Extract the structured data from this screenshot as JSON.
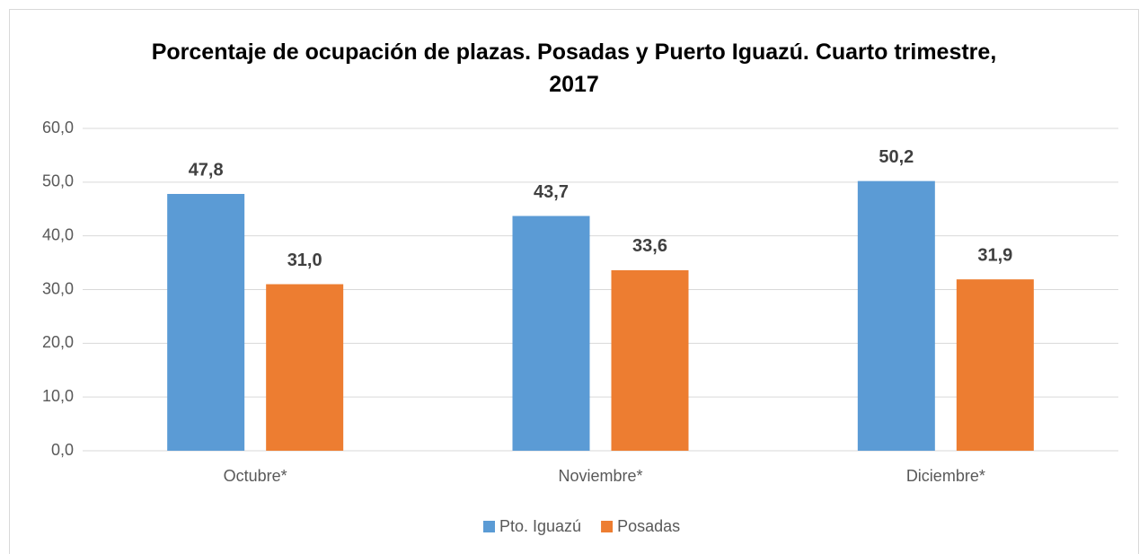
{
  "chart_data": {
    "type": "bar",
    "title": "Porcentaje de ocupación de plazas. Posadas y Puerto Iguazú. Cuarto trimestre, 2017",
    "categories": [
      "Octubre*",
      "Noviembre*",
      "Diciembre*"
    ],
    "series": [
      {
        "name": "Pto. Iguazú",
        "color": "#5b9bd5",
        "values": [
          47.8,
          43.7,
          50.2
        ],
        "value_labels": [
          "47,8",
          "43,7",
          "50,2"
        ]
      },
      {
        "name": "Posadas",
        "color": "#ed7d31",
        "values": [
          31.0,
          33.6,
          31.9
        ],
        "value_labels": [
          "31,0",
          "33,6",
          "31,9"
        ]
      }
    ],
    "ylim": [
      0,
      60
    ],
    "yticks": [
      {
        "value": 0,
        "label": "0,0"
      },
      {
        "value": 10,
        "label": "10,0"
      },
      {
        "value": 20,
        "label": "20,0"
      },
      {
        "value": 30,
        "label": "30,0"
      },
      {
        "value": 40,
        "label": "40,0"
      },
      {
        "value": 50,
        "label": "50,0"
      },
      {
        "value": 60,
        "label": "60,0"
      }
    ],
    "grid": true,
    "legend": "bottom"
  }
}
